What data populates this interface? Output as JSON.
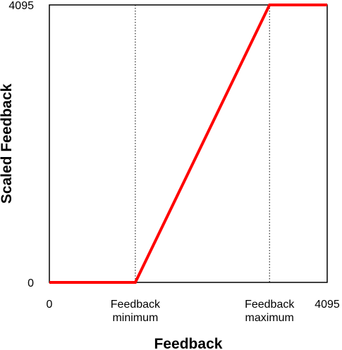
{
  "chart_data": {
    "type": "line",
    "xlabel": "Feedback",
    "ylabel": "Scaled Feedback",
    "xlim": [
      0,
      4095
    ],
    "ylim": [
      0,
      4095
    ],
    "grid": false,
    "legend": "none",
    "x_ticks": [
      {
        "value": 0,
        "lines": [
          "0"
        ]
      },
      {
        "value": 1267,
        "lines": [
          "Feedback",
          "minimum"
        ]
      },
      {
        "value": 3245,
        "lines": [
          "Feedback",
          "maximum"
        ]
      },
      {
        "value": 4095,
        "lines": [
          "4095"
        ]
      }
    ],
    "y_ticks": [
      {
        "value": 0,
        "label": "0"
      },
      {
        "value": 4095,
        "label": "4095"
      }
    ],
    "reference_lines_x": [
      1267,
      3245
    ],
    "series": [
      {
        "color": "#ff0000",
        "points": [
          {
            "x": 0,
            "y": 0
          },
          {
            "x": 1267,
            "y": 0
          },
          {
            "x": 3245,
            "y": 4095
          },
          {
            "x": 4095,
            "y": 4095
          }
        ]
      }
    ]
  }
}
